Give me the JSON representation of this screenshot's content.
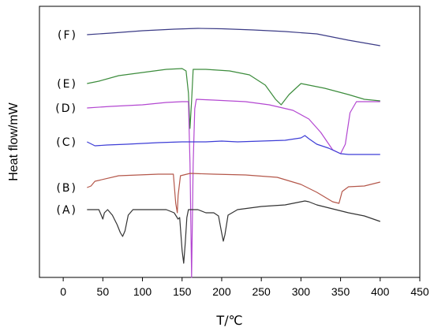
{
  "chart_data": {
    "type": "line",
    "xlabel": "T/℃",
    "ylabel": "Heat flow/mW",
    "xlim": [
      -30,
      450
    ],
    "xticks": [
      0,
      50,
      100,
      150,
      200,
      250,
      300,
      350,
      400,
      450
    ],
    "grid": false,
    "series": [
      {
        "name": "(F)",
        "color": "#3b3b86",
        "points": [
          [
            30,
            36
          ],
          [
            60,
            34
          ],
          [
            100,
            31
          ],
          [
            140,
            29
          ],
          [
            170,
            28
          ],
          [
            200,
            28.5
          ],
          [
            240,
            30
          ],
          [
            280,
            32
          ],
          [
            320,
            35
          ],
          [
            360,
            43
          ],
          [
            400,
            50
          ]
        ]
      },
      {
        "name": "(E)",
        "color": "#3c8c3c",
        "points": [
          [
            30,
            98
          ],
          [
            45,
            95
          ],
          [
            70,
            88
          ],
          [
            100,
            84
          ],
          [
            130,
            80
          ],
          [
            150,
            79
          ],
          [
            155,
            82
          ],
          [
            158,
            110
          ],
          [
            160,
            155
          ],
          [
            162,
            120
          ],
          [
            164,
            80
          ],
          [
            180,
            80
          ],
          [
            210,
            82
          ],
          [
            235,
            87
          ],
          [
            255,
            100
          ],
          [
            268,
            118
          ],
          [
            275,
            125
          ],
          [
            285,
            112
          ],
          [
            300,
            98
          ],
          [
            330,
            104
          ],
          [
            360,
            112
          ],
          [
            380,
            118
          ],
          [
            400,
            120
          ]
        ]
      },
      {
        "name": "(D)",
        "color": "#b347d1",
        "points": [
          [
            30,
            129
          ],
          [
            60,
            127
          ],
          [
            100,
            125
          ],
          [
            130,
            122
          ],
          [
            150,
            121
          ],
          [
            158,
            121
          ],
          [
            160,
            200
          ],
          [
            162,
            344
          ],
          [
            164,
            200
          ],
          [
            166,
            130
          ],
          [
            168,
            118
          ],
          [
            190,
            119
          ],
          [
            230,
            121
          ],
          [
            260,
            125
          ],
          [
            290,
            132
          ],
          [
            310,
            143
          ],
          [
            325,
            160
          ],
          [
            340,
            182
          ],
          [
            350,
            187
          ],
          [
            356,
            175
          ],
          [
            362,
            135
          ],
          [
            370,
            121
          ],
          [
            400,
            121
          ]
        ]
      },
      {
        "name": "(C)",
        "color": "#3d3dd6",
        "points": [
          [
            30,
            172
          ],
          [
            40,
            177
          ],
          [
            55,
            176
          ],
          [
            80,
            175
          ],
          [
            120,
            173
          ],
          [
            150,
            172
          ],
          [
            180,
            172
          ],
          [
            200,
            171
          ],
          [
            220,
            172
          ],
          [
            250,
            171
          ],
          [
            280,
            170
          ],
          [
            300,
            167
          ],
          [
            305,
            164
          ],
          [
            310,
            168
          ],
          [
            320,
            175
          ],
          [
            335,
            180
          ],
          [
            350,
            187
          ],
          [
            360,
            188
          ],
          [
            380,
            188
          ],
          [
            400,
            188
          ]
        ]
      },
      {
        "name": "(B)",
        "color": "#b4574a",
        "points": [
          [
            30,
            230
          ],
          [
            35,
            228
          ],
          [
            40,
            222
          ],
          [
            70,
            215
          ],
          [
            120,
            213
          ],
          [
            139,
            213
          ],
          [
            142,
            250
          ],
          [
            144,
            262
          ],
          [
            145,
            240
          ],
          [
            148,
            215
          ],
          [
            160,
            212
          ],
          [
            190,
            213
          ],
          [
            230,
            214
          ],
          [
            270,
            217
          ],
          [
            300,
            226
          ],
          [
            320,
            236
          ],
          [
            340,
            248
          ],
          [
            348,
            250
          ],
          [
            352,
            235
          ],
          [
            360,
            229
          ],
          [
            380,
            228
          ],
          [
            400,
            223
          ]
        ]
      },
      {
        "name": "(A)",
        "color": "#333333",
        "points": [
          [
            30,
            258
          ],
          [
            45,
            258
          ],
          [
            48,
            265
          ],
          [
            50,
            270
          ],
          [
            52,
            262
          ],
          [
            56,
            258
          ],
          [
            62,
            265
          ],
          [
            68,
            277
          ],
          [
            72,
            287
          ],
          [
            75,
            292
          ],
          [
            78,
            285
          ],
          [
            82,
            265
          ],
          [
            88,
            258
          ],
          [
            130,
            258
          ],
          [
            140,
            262
          ],
          [
            145,
            270
          ],
          [
            147,
            268
          ],
          [
            150,
            310
          ],
          [
            152,
            326
          ],
          [
            154,
            300
          ],
          [
            156,
            268
          ],
          [
            158,
            258
          ],
          [
            170,
            258
          ],
          [
            180,
            262
          ],
          [
            190,
            262
          ],
          [
            196,
            266
          ],
          [
            200,
            288
          ],
          [
            202,
            298
          ],
          [
            204,
            290
          ],
          [
            208,
            265
          ],
          [
            220,
            258
          ],
          [
            250,
            254
          ],
          [
            280,
            252
          ],
          [
            300,
            248
          ],
          [
            305,
            247
          ],
          [
            310,
            248
          ],
          [
            320,
            252
          ],
          [
            340,
            257
          ],
          [
            360,
            262
          ],
          [
            380,
            266
          ],
          [
            400,
            273
          ]
        ]
      }
    ]
  }
}
